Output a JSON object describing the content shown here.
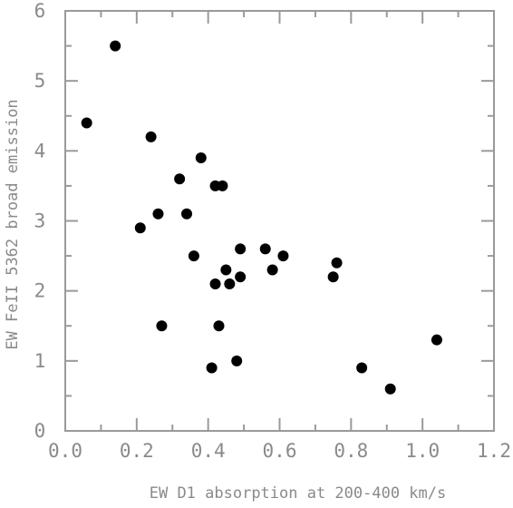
{
  "chart_data": {
    "type": "scatter",
    "xlabel": "EW D1 absorption at 200-400 km/s",
    "ylabel": "EW FeII 5362 broad emission",
    "xlim": [
      0.0,
      1.2
    ],
    "ylim": [
      0,
      6
    ],
    "x_ticks": [
      "0.0",
      "0.2",
      "0.4",
      "0.6",
      "0.8",
      "1.0",
      "1.2"
    ],
    "y_ticks": [
      "0",
      "1",
      "2",
      "3",
      "4",
      "5",
      "6"
    ],
    "grid": false,
    "marker_color": "#000000",
    "points": [
      {
        "x": 0.06,
        "y": 4.4
      },
      {
        "x": 0.14,
        "y": 5.5
      },
      {
        "x": 0.21,
        "y": 2.9
      },
      {
        "x": 0.24,
        "y": 4.2
      },
      {
        "x": 0.26,
        "y": 3.1
      },
      {
        "x": 0.27,
        "y": 1.5
      },
      {
        "x": 0.32,
        "y": 3.6
      },
      {
        "x": 0.34,
        "y": 3.1
      },
      {
        "x": 0.36,
        "y": 2.5
      },
      {
        "x": 0.38,
        "y": 3.9
      },
      {
        "x": 0.41,
        "y": 0.9
      },
      {
        "x": 0.42,
        "y": 3.5
      },
      {
        "x": 0.42,
        "y": 2.1
      },
      {
        "x": 0.43,
        "y": 1.5
      },
      {
        "x": 0.44,
        "y": 3.5
      },
      {
        "x": 0.45,
        "y": 2.3
      },
      {
        "x": 0.46,
        "y": 2.1
      },
      {
        "x": 0.48,
        "y": 1.0
      },
      {
        "x": 0.49,
        "y": 2.6
      },
      {
        "x": 0.49,
        "y": 2.2
      },
      {
        "x": 0.56,
        "y": 2.6
      },
      {
        "x": 0.58,
        "y": 2.3
      },
      {
        "x": 0.61,
        "y": 2.5
      },
      {
        "x": 0.75,
        "y": 2.2
      },
      {
        "x": 0.76,
        "y": 2.4
      },
      {
        "x": 0.83,
        "y": 0.9
      },
      {
        "x": 0.91,
        "y": 0.6
      },
      {
        "x": 1.04,
        "y": 1.3
      }
    ]
  }
}
